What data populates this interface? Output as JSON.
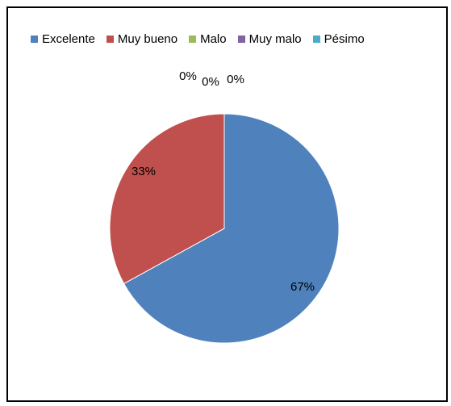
{
  "chart_data": {
    "type": "pie",
    "title": "",
    "legend_position": "top",
    "slices": [
      {
        "label": "Excelente",
        "value": 67,
        "percent_label": "67%",
        "color": "#4F81BD"
      },
      {
        "label": "Muy bueno",
        "value": 33,
        "percent_label": "33%",
        "color": "#C0504D"
      },
      {
        "label": "Malo",
        "value": 0,
        "percent_label": "0%",
        "color": "#9BBB59"
      },
      {
        "label": "Muy malo",
        "value": 0,
        "percent_label": "0%",
        "color": "#8064A2"
      },
      {
        "label": "Pésimo",
        "value": 0,
        "percent_label": "0%",
        "color": "#4BACC6"
      }
    ]
  }
}
